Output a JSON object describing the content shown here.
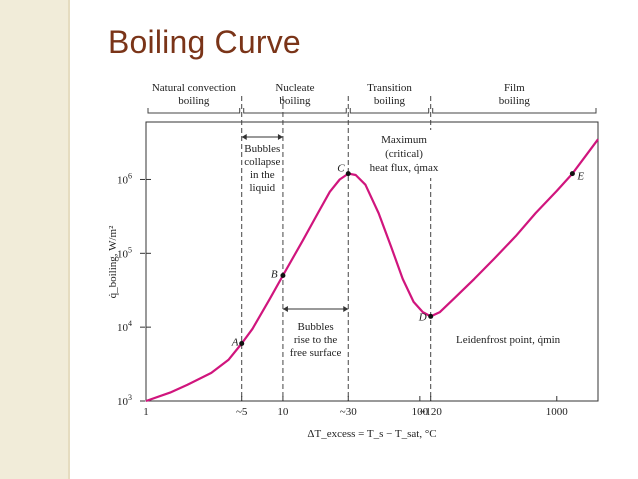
{
  "slide": {
    "title": "Boiling Curve"
  },
  "chart_data": {
    "type": "line",
    "xscale": "log",
    "yscale": "log",
    "xlim": [
      1,
      2000
    ],
    "ylim": [
      1000,
      6000000
    ],
    "xlabel": "ΔT_excess = T_s − T_sat, °C",
    "ylabel": "q̇_boiling, W/m²",
    "x_ticks": [
      {
        "value": 1,
        "label": "1"
      },
      {
        "value": 5,
        "label": "~5"
      },
      {
        "value": 10,
        "label": "10"
      },
      {
        "value": 30,
        "label": "~30"
      },
      {
        "value": 100,
        "label": "100"
      },
      {
        "value": 120,
        "label": "~120"
      },
      {
        "value": 1000,
        "label": "1000"
      }
    ],
    "y_ticks": [
      {
        "value": 1000,
        "base": "10",
        "exp": "3"
      },
      {
        "value": 10000,
        "base": "10",
        "exp": "4"
      },
      {
        "value": 100000,
        "base": "10",
        "exp": "5"
      },
      {
        "value": 1000000,
        "base": "10",
        "exp": "6"
      }
    ],
    "regions": [
      {
        "line1": "Natural convection",
        "line2": "boiling",
        "from": 1,
        "to": 5
      },
      {
        "line1": "Nucleate",
        "line2": "boiling",
        "from": 5,
        "to": 30
      },
      {
        "line1": "Transition",
        "line2": "boiling",
        "from": 30,
        "to": 120
      },
      {
        "line1": "Film",
        "line2": "boiling",
        "from": 120,
        "to": 2000
      }
    ],
    "boundaries": [
      5,
      10,
      30,
      120
    ],
    "points": [
      {
        "label": "A",
        "x": 5,
        "y": 6000
      },
      {
        "label": "B",
        "x": 10,
        "y": 50000
      },
      {
        "label": "C",
        "x": 30,
        "y": 1200000
      },
      {
        "label": "D",
        "x": 120,
        "y": 14000
      },
      {
        "label": "E",
        "x": 1300,
        "y": 1200000
      }
    ],
    "curve": [
      {
        "x": 1,
        "y": 1000
      },
      {
        "x": 1.5,
        "y": 1300
      },
      {
        "x": 2,
        "y": 1650
      },
      {
        "x": 3,
        "y": 2400
      },
      {
        "x": 4,
        "y": 3600
      },
      {
        "x": 5,
        "y": 6000
      },
      {
        "x": 6,
        "y": 9500
      },
      {
        "x": 8,
        "y": 24000
      },
      {
        "x": 10,
        "y": 50000
      },
      {
        "x": 14,
        "y": 150000
      },
      {
        "x": 18,
        "y": 350000
      },
      {
        "x": 22,
        "y": 680000
      },
      {
        "x": 26,
        "y": 1000000
      },
      {
        "x": 30,
        "y": 1200000
      },
      {
        "x": 34,
        "y": 1150000
      },
      {
        "x": 40,
        "y": 850000
      },
      {
        "x": 50,
        "y": 350000
      },
      {
        "x": 62,
        "y": 120000
      },
      {
        "x": 75,
        "y": 45000
      },
      {
        "x": 90,
        "y": 22000
      },
      {
        "x": 105,
        "y": 16000
      },
      {
        "x": 120,
        "y": 14000
      },
      {
        "x": 140,
        "y": 16000
      },
      {
        "x": 180,
        "y": 25000
      },
      {
        "x": 250,
        "y": 45000
      },
      {
        "x": 350,
        "y": 85000
      },
      {
        "x": 500,
        "y": 170000
      },
      {
        "x": 700,
        "y": 350000
      },
      {
        "x": 1000,
        "y": 700000
      },
      {
        "x": 1300,
        "y": 1200000
      },
      {
        "x": 1600,
        "y": 2000000
      },
      {
        "x": 2000,
        "y": 3500000
      }
    ],
    "annotations": {
      "bubbles_collapse": [
        "Bubbles",
        "collapse",
        "in the",
        "liquid"
      ],
      "bubbles_rise": [
        "Bubbles",
        "rise to the",
        "free surface"
      ],
      "maximum": [
        "Maximum",
        "(critical)",
        "heat flux, q̇max"
      ],
      "leidenfrost": "Leidenfrost point, q̇min"
    },
    "curve_color": "#d0157d"
  }
}
